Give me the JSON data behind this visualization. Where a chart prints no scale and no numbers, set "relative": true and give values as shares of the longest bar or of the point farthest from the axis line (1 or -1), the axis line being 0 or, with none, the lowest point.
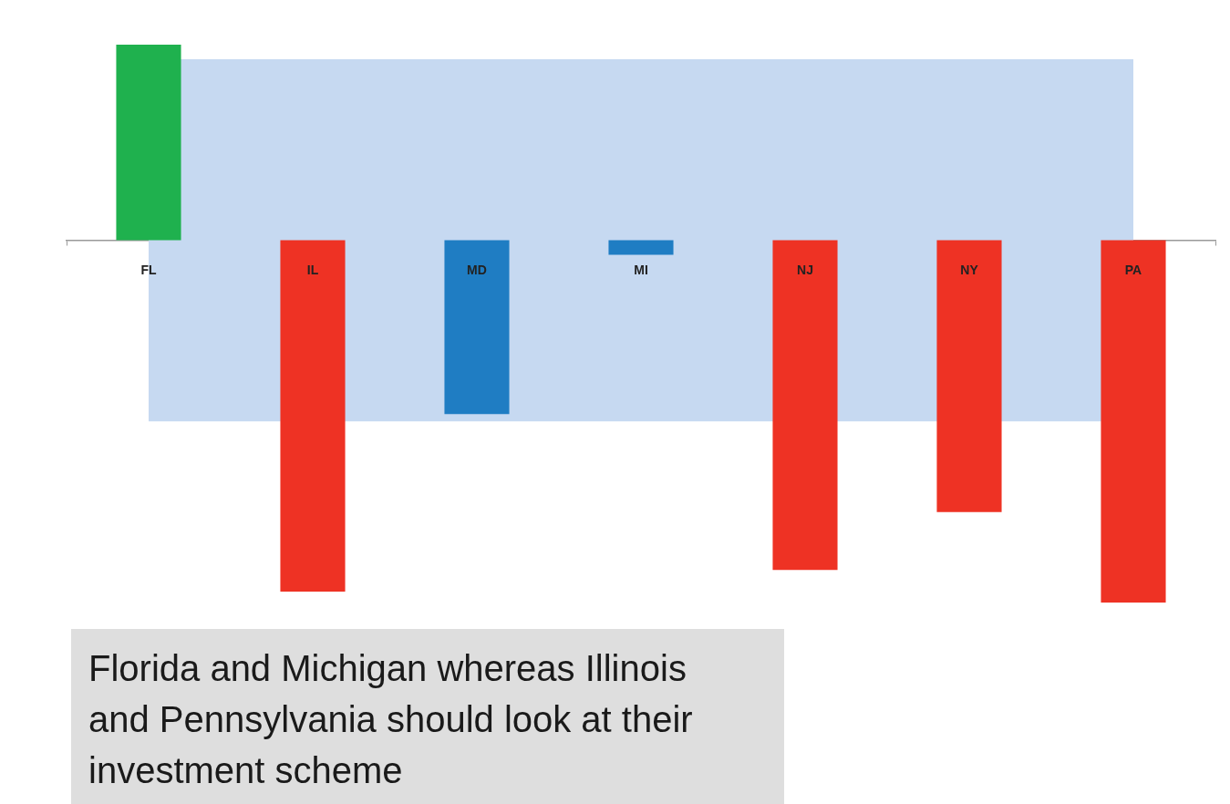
{
  "chart_data": {
    "type": "bar",
    "categories": [
      "FL",
      "IL",
      "MD",
      "MI",
      "NJ",
      "NY",
      "PA"
    ],
    "values": [
      0.54,
      -0.97,
      -0.48,
      -0.04,
      -0.91,
      -0.75,
      -1
    ],
    "colors": [
      "#1fb14e",
      "#ee3224",
      "#1f7dc3",
      "#1f7dc3",
      "#ee3224",
      "#ee3224",
      "#ee3224"
    ],
    "relative": true,
    "bands": [
      {
        "axis": "y",
        "from": -0.5,
        "to": 0.5,
        "color": "#c6d9f1"
      }
    ],
    "legend": false,
    "annotations": [
      "Florida and Michigan whereas Illinois and Pennsylvania should look at their investment scheme"
    ]
  }
}
